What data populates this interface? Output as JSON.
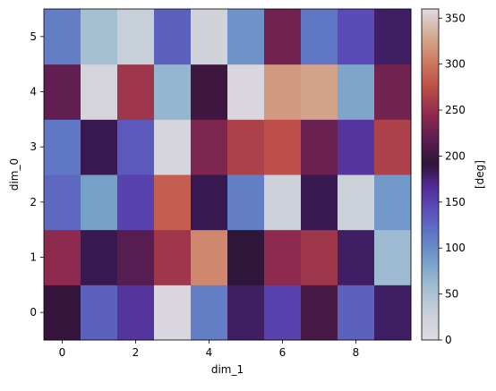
{
  "chart_data": {
    "type": "heatmap",
    "colormap": "twilight",
    "xlabel": "dim_1",
    "ylabel": "dim_0",
    "x_ticks": [
      0,
      2,
      4,
      6,
      8
    ],
    "y_ticks": [
      0,
      1,
      2,
      3,
      4,
      5
    ],
    "x_range": [
      -0.5,
      9.5
    ],
    "y_range": [
      -0.5,
      5.5
    ],
    "colorbar": {
      "label": "[deg]",
      "range": [
        0,
        360
      ],
      "ticks": [
        0,
        50,
        100,
        150,
        200,
        250,
        300,
        350
      ]
    },
    "rows": [
      [
        195,
        130,
        160,
        10,
        110,
        180,
        150,
        205,
        130,
        180
      ],
      [
        245,
        185,
        215,
        255,
        310,
        190,
        245,
        255,
        180,
        60
      ],
      [
        125,
        85,
        150,
        285,
        185,
        110,
        25,
        185,
        25,
        90
      ],
      [
        115,
        185,
        135,
        15,
        235,
        265,
        275,
        225,
        160,
        265
      ],
      [
        220,
        15,
        255,
        65,
        200,
        10,
        320,
        325,
        80,
        230
      ],
      [
        110,
        55,
        30,
        130,
        20,
        95,
        230,
        115,
        145,
        180
      ]
    ]
  }
}
